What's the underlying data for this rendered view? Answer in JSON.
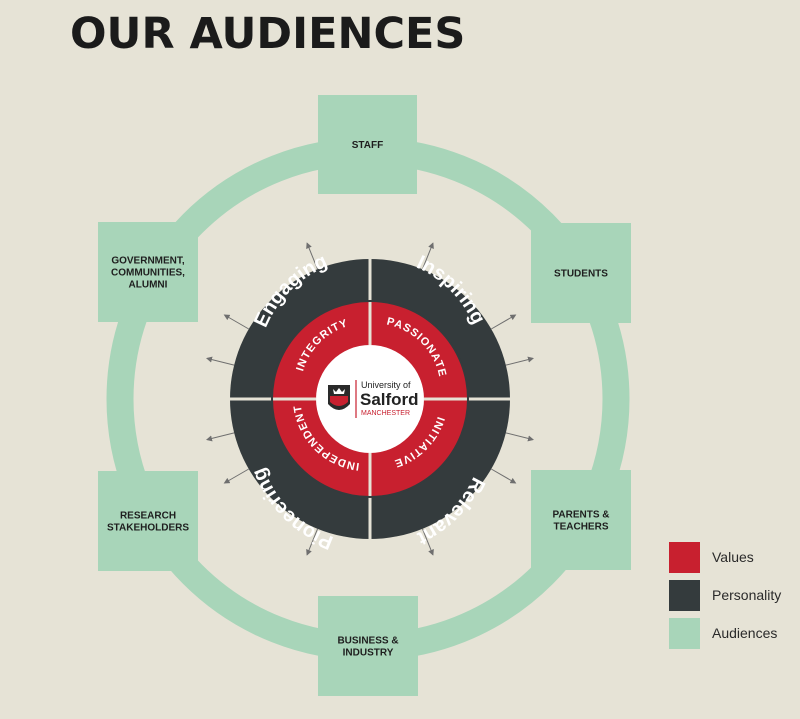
{
  "title": "OUR AUDIENCES",
  "colors": {
    "background": "#e6e3d6",
    "values": "#c8202f",
    "personality": "#343b3d",
    "audiences": "#a8d5b9"
  },
  "audiences": [
    {
      "id": "staff",
      "lines": [
        "STAFF"
      ]
    },
    {
      "id": "students",
      "lines": [
        "STUDENTS"
      ]
    },
    {
      "id": "parents",
      "lines": [
        "PARENTS &",
        "TEACHERS"
      ]
    },
    {
      "id": "business",
      "lines": [
        "BUSINESS &",
        "INDUSTRY"
      ]
    },
    {
      "id": "research",
      "lines": [
        "RESEARCH",
        "STAKEHOLDERS"
      ]
    },
    {
      "id": "government",
      "lines": [
        "GOVERNMENT,",
        "COMMUNITIES,",
        "ALUMNI"
      ]
    }
  ],
  "personality": [
    "Engaging",
    "Inspiring",
    "Relevant",
    "Pioneering"
  ],
  "values": [
    "INTEGRITY",
    "PASSIONATE",
    "INITIATIVE",
    "INDEPENDENT"
  ],
  "logo": {
    "line1": "University of",
    "line2": "Salford",
    "line3": "MANCHESTER"
  },
  "legend": [
    {
      "label": "Values",
      "color": "#c8202f"
    },
    {
      "label": "Personality",
      "color": "#343b3d"
    },
    {
      "label": "Audiences",
      "color": "#a8d5b9"
    }
  ]
}
